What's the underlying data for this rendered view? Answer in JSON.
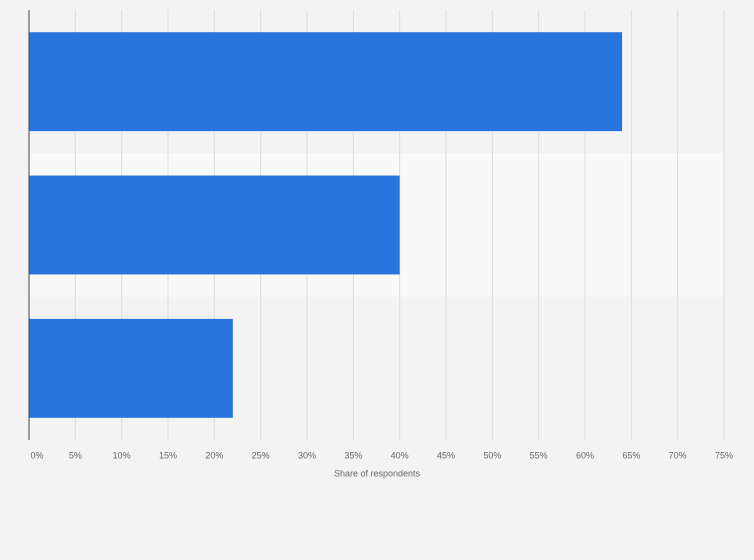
{
  "chart_data": {
    "type": "hbar",
    "x_label": "Share of respondents",
    "categories": [
      null,
      null,
      null
    ],
    "values": [
      64,
      40,
      22
    ],
    "color": "#2775dc",
    "xlim": [
      0,
      75
    ],
    "xticks": [
      {
        "value": 0,
        "label": "0%"
      },
      {
        "value": 5,
        "label": "5%"
      },
      {
        "value": 10,
        "label": "10%"
      },
      {
        "value": 15,
        "label": "15%"
      },
      {
        "value": 20,
        "label": "20%"
      },
      {
        "value": 25,
        "label": "25%"
      },
      {
        "value": 30,
        "label": "30%"
      },
      {
        "value": 35,
        "label": "35%"
      },
      {
        "value": 40,
        "label": "40%"
      },
      {
        "value": 45,
        "label": "45%"
      },
      {
        "value": 50,
        "label": "50%"
      },
      {
        "value": 55,
        "label": "55%"
      },
      {
        "value": 60,
        "label": "60%"
      },
      {
        "value": 65,
        "label": "65%"
      },
      {
        "value": 70,
        "label": "70%"
      },
      {
        "value": 75,
        "label": "75%"
      }
    ],
    "grid": true
  }
}
